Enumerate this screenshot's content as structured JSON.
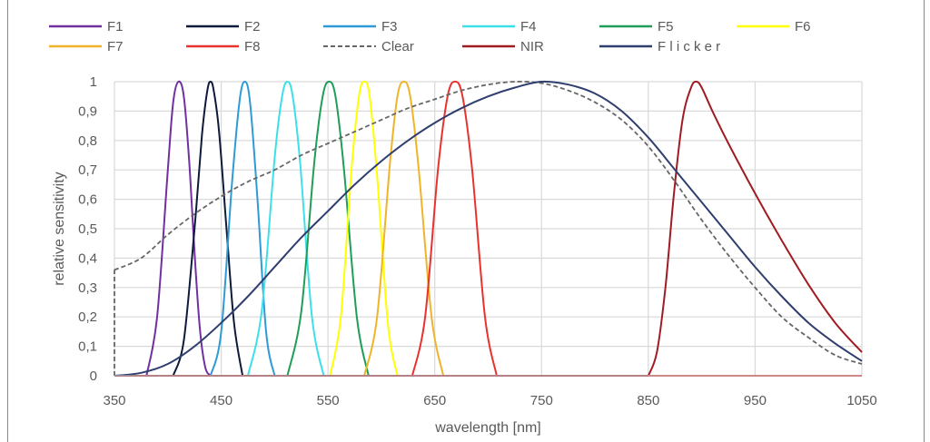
{
  "chart_data": {
    "type": "line",
    "title": "",
    "xlabel": "wavelength [nm]",
    "ylabel": "relative sensitivity",
    "xlim": [
      350,
      1050
    ],
    "ylim": [
      0,
      1
    ],
    "grid": true,
    "legend_position": "top",
    "x_ticks": [
      "350",
      "450",
      "550",
      "650",
      "750",
      "850",
      "950",
      "1050"
    ],
    "y_ticks": [
      "0",
      "0,1",
      "0,2",
      "0,3",
      "0,4",
      "0,5",
      "0,6",
      "0,7",
      "0,8",
      "0,9",
      "1"
    ],
    "series": [
      {
        "name": "F1",
        "color": "#7030a0",
        "dash": false,
        "x": [
          380,
          390,
          400,
          405,
          410,
          415,
          420,
          425,
          430,
          435,
          440
        ],
        "y": [
          0,
          0.2,
          0.7,
          0.93,
          1.0,
          0.95,
          0.73,
          0.42,
          0.16,
          0.03,
          0
        ]
      },
      {
        "name": "F2",
        "color": "#0e1a3a",
        "dash": false,
        "x": [
          405,
          415,
          425,
          432,
          437,
          440,
          443,
          448,
          455,
          462,
          470
        ],
        "y": [
          0,
          0.12,
          0.5,
          0.82,
          0.97,
          1.0,
          0.97,
          0.83,
          0.5,
          0.18,
          0
        ]
      },
      {
        "name": "F3",
        "color": "#2e9bd6",
        "dash": false,
        "x": [
          440,
          450,
          460,
          467,
          472,
          477,
          484,
          492,
          500
        ],
        "y": [
          0,
          0.15,
          0.65,
          0.93,
          1.0,
          0.93,
          0.6,
          0.15,
          0
        ]
      },
      {
        "name": "F4",
        "color": "#3de0e8",
        "dash": false,
        "x": [
          475,
          488,
          500,
          507,
          512,
          517,
          524,
          535,
          546
        ],
        "y": [
          0,
          0.22,
          0.74,
          0.95,
          1.0,
          0.95,
          0.72,
          0.2,
          0
        ]
      },
      {
        "name": "F5",
        "color": "#1e9e58",
        "dash": false,
        "x": [
          512,
          525,
          537,
          545,
          551,
          557,
          565,
          577,
          588
        ],
        "y": [
          0,
          0.22,
          0.72,
          0.95,
          1.0,
          0.95,
          0.7,
          0.2,
          0
        ]
      },
      {
        "name": "F6",
        "color": "#ffff00",
        "dash": false,
        "x": [
          552,
          562,
          572,
          579,
          584,
          589,
          596,
          606,
          615
        ],
        "y": [
          0,
          0.2,
          0.7,
          0.95,
          1.0,
          0.95,
          0.68,
          0.18,
          0
        ]
      },
      {
        "name": "F7",
        "color": "#f0b429",
        "dash": false,
        "x": [
          584,
          596,
          608,
          615,
          621,
          627,
          635,
          647,
          658
        ],
        "y": [
          0,
          0.2,
          0.72,
          0.95,
          1.0,
          0.95,
          0.7,
          0.2,
          0
        ]
      },
      {
        "name": "F8",
        "color": "#e8322d",
        "dash": false,
        "x": [
          629,
          641,
          653,
          662,
          669,
          676,
          685,
          697,
          708
        ],
        "y": [
          0,
          0.2,
          0.7,
          0.95,
          1.0,
          0.95,
          0.7,
          0.2,
          0
        ]
      },
      {
        "name": "Clear",
        "color": "#666666",
        "dash": true,
        "x": [
          350,
          375,
          400,
          425,
          450,
          475,
          500,
          525,
          550,
          575,
          600,
          625,
          650,
          675,
          700,
          725,
          750,
          775,
          800,
          825,
          850,
          875,
          900,
          925,
          950,
          975,
          1000,
          1025,
          1050
        ],
        "y": [
          0.36,
          0.4,
          0.48,
          0.55,
          0.61,
          0.66,
          0.7,
          0.75,
          0.79,
          0.83,
          0.87,
          0.91,
          0.94,
          0.97,
          0.99,
          1.0,
          0.995,
          0.97,
          0.93,
          0.87,
          0.78,
          0.66,
          0.53,
          0.41,
          0.3,
          0.2,
          0.13,
          0.07,
          0.04
        ]
      },
      {
        "name": "NIR",
        "color": "#a01c22",
        "dash": false,
        "x": [
          850,
          858,
          866,
          874,
          882,
          890,
          895,
          900,
          910,
          925,
          950,
          975,
          1000,
          1025,
          1050
        ],
        "y": [
          0,
          0.08,
          0.3,
          0.62,
          0.87,
          0.98,
          1.0,
          0.98,
          0.9,
          0.79,
          0.62,
          0.46,
          0.31,
          0.18,
          0.08
        ]
      },
      {
        "name": "F l i c k e r",
        "color": "#2f3e6e",
        "dash": false,
        "x": [
          350,
          375,
          400,
          425,
          450,
          475,
          500,
          525,
          550,
          575,
          600,
          625,
          650,
          675,
          700,
          725,
          750,
          775,
          800,
          825,
          850,
          875,
          900,
          925,
          950,
          975,
          1000,
          1025,
          1050
        ],
        "y": [
          0,
          0.01,
          0.04,
          0.1,
          0.18,
          0.27,
          0.37,
          0.47,
          0.56,
          0.65,
          0.73,
          0.8,
          0.86,
          0.91,
          0.95,
          0.98,
          1.0,
          0.99,
          0.96,
          0.9,
          0.81,
          0.7,
          0.59,
          0.48,
          0.37,
          0.27,
          0.18,
          0.11,
          0.05
        ]
      }
    ]
  }
}
